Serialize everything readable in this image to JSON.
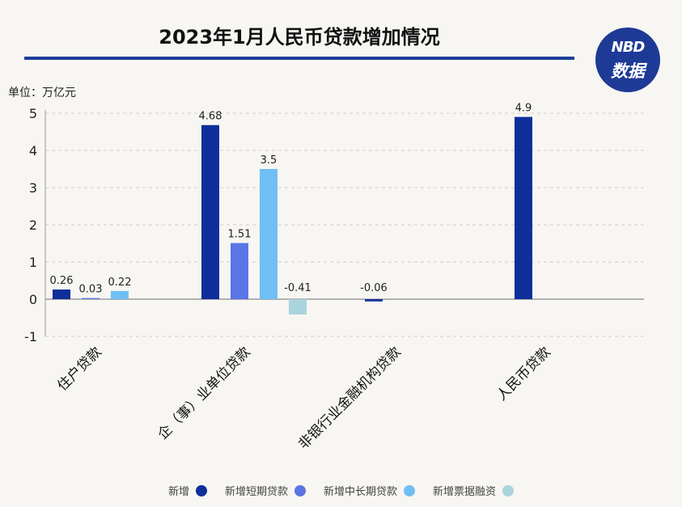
{
  "header": {
    "title": "2023年1月人民币贷款增加情况",
    "logo_top": "NBD",
    "logo_bottom": "数据",
    "unit": "单位：万亿元"
  },
  "chart_data": {
    "type": "bar",
    "title": "2023年1月人民币贷款增加情况",
    "ylabel": "单位：万亿元",
    "ylim": [
      -1,
      5
    ],
    "yticks": [
      5,
      4,
      3,
      2,
      1,
      0,
      -1
    ],
    "grid": true,
    "legend_position": "bottom",
    "categories": [
      "住户贷款",
      "企（事）业单位贷款",
      "非银行业金融机构贷款",
      "人民币贷款"
    ],
    "series": [
      {
        "name": "新增",
        "color": "#0e2f9a",
        "values": [
          0.26,
          4.68,
          -0.06,
          4.9
        ]
      },
      {
        "name": "新增短期贷款",
        "color": "#5a76e6",
        "values": [
          0.03,
          1.51,
          null,
          null
        ]
      },
      {
        "name": "新增中长期贷款",
        "color": "#6fbff5",
        "values": [
          0.22,
          3.5,
          null,
          null
        ]
      },
      {
        "name": "新增票据融资",
        "color": "#a9d3dd",
        "values": [
          null,
          -0.41,
          null,
          null
        ]
      }
    ]
  }
}
